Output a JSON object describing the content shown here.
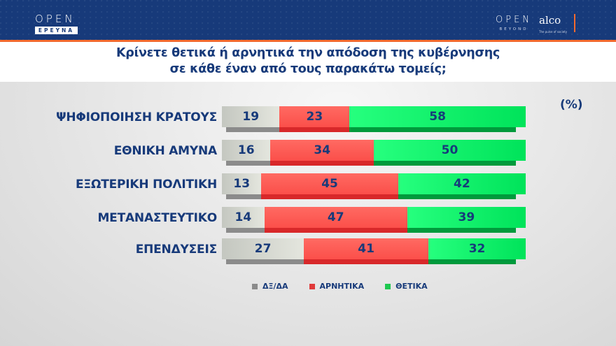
{
  "header": {
    "logo_left_main": "OPEN",
    "logo_left_sub": "ΕΡΕΥΝΑ",
    "logo_right_main": "OPEN",
    "logo_right_sub": "BEYOND",
    "partner_name": "alco",
    "partner_tagline": "The pulse of society"
  },
  "title_line1": "Κρίνετε θετικά ή αρνητικά την απόδοση της κυβέρνησης",
  "title_line2": "σε κάθε έναν από τους παρακάτω τομείς;",
  "unit": "(%)",
  "colors": {
    "dkna": "#8b8b8b",
    "negative": "#fb4f4a",
    "positive": "#00e35a",
    "text": "#173a7a",
    "header": "#173a7a",
    "accent": "#f26a2e"
  },
  "legend": [
    {
      "label": "ΔΞ/ΔΑ",
      "color": "#8b8b8b"
    },
    {
      "label": "ΑΡΝΗΤΙΚΑ",
      "color": "#e03a3a"
    },
    {
      "label": "ΘΕΤΙΚΑ",
      "color": "#1ec850"
    }
  ],
  "rows": [
    {
      "label": "ΨΗΦΙΟΠΟΙΗΣΗ ΚΡΑΤΟΥΣ",
      "dkna": "19",
      "negative": "23",
      "positive": "58"
    },
    {
      "label": "ΕΘΝΙΚΗ ΑΜΥΝΑ",
      "dkna": "16",
      "negative": "34",
      "positive": "50"
    },
    {
      "label": "ΕΞΩΤΕΡΙΚΗ ΠΟΛΙΤΙΚΗ",
      "dkna": "13",
      "negative": "45",
      "positive": "42"
    },
    {
      "label": "ΜΕΤΑΝΑΣΤΕΥΤΙΚΟ",
      "dkna": "14",
      "negative": "47",
      "positive": "39"
    },
    {
      "label": "ΕΠΕΝΔΥΣΕΙΣ",
      "dkna": "27",
      "negative": "41",
      "positive": "32"
    }
  ],
  "chart_data": {
    "type": "bar",
    "orientation": "horizontal",
    "stacked": true,
    "title": "Κρίνετε θετικά ή αρνητικά την απόδοση της κυβέρνησης σε κάθε έναν από τους παρακάτω τομείς;",
    "unit": "%",
    "categories": [
      "ΨΗΦΙΟΠΟΙΗΣΗ ΚΡΑΤΟΥΣ",
      "ΕΘΝΙΚΗ ΑΜΥΝΑ",
      "ΕΞΩΤΕΡΙΚΗ ΠΟΛΙΤΙΚΗ",
      "ΜΕΤΑΝΑΣΤΕΥΤΙΚΟ",
      "ΕΠΕΝΔΥΣΕΙΣ"
    ],
    "series": [
      {
        "name": "ΔΞ/ΔΑ",
        "values": [
          19,
          16,
          13,
          14,
          27
        ]
      },
      {
        "name": "ΑΡΝΗΤΙΚΑ",
        "values": [
          23,
          34,
          45,
          47,
          41
        ]
      },
      {
        "name": "ΘΕΤΙΚΑ",
        "values": [
          58,
          50,
          42,
          39,
          32
        ]
      }
    ],
    "legend_position": "bottom",
    "grid": false,
    "xlim": [
      0,
      100
    ]
  }
}
